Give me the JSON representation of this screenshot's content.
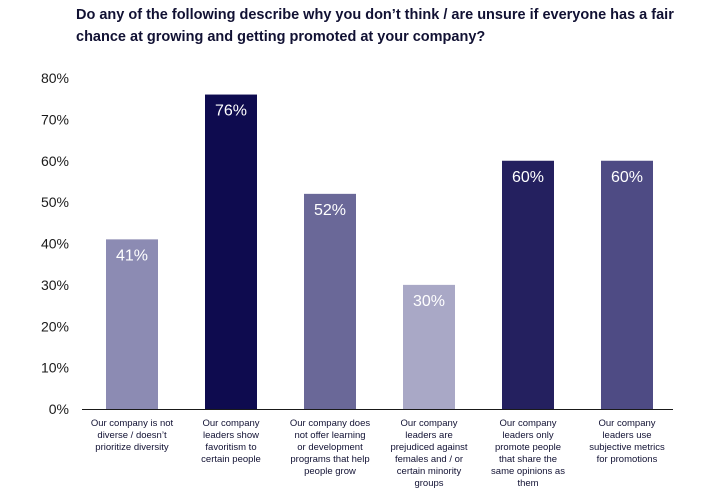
{
  "chart_data": {
    "type": "bar",
    "title_lines": [
      "Do any of the following describe why you don’t think / are unsure if everyone has a fair",
      "chance at growing and getting promoted at your company?"
    ],
    "categories": [
      "Our company is not diverse / doesn’t prioritize diversity",
      "Our company leaders show favoritism to certain people",
      "Our company does not offer learning or development programs that help people grow",
      "Our company leaders are prejudiced against females and / or certain minority groups",
      "Our company leaders only promote people that share the same opinions as them",
      "Our company leaders use subjective metrics for promotions"
    ],
    "category_lines": [
      [
        "Our company is not",
        "diverse / doesn’t",
        "prioritize diversity"
      ],
      [
        "Our company",
        "leaders show",
        "favoritism to",
        "certain people"
      ],
      [
        "Our company does",
        "not offer learning",
        "or development",
        "programs that help",
        "people grow"
      ],
      [
        "Our company",
        "leaders are",
        "prejudiced against",
        "females and / or",
        "certain minority",
        "groups"
      ],
      [
        "Our company",
        "leaders only",
        "promote people",
        "that share the",
        "same opinions as",
        "them"
      ],
      [
        "Our company",
        "leaders use",
        "subjective metrics",
        "for promotions"
      ]
    ],
    "values": [
      41,
      76,
      52,
      30,
      60,
      60
    ],
    "data_labels": [
      "41%",
      "76%",
      "52%",
      "30%",
      "60%",
      "60%"
    ],
    "bar_colors": [
      "#8c8bb3",
      "#0e0b4f",
      "#6a6898",
      "#a9a8c6",
      "#24205f",
      "#4e4b84"
    ],
    "y_ticks": [
      0,
      10,
      20,
      30,
      40,
      50,
      60,
      70,
      80
    ],
    "y_tick_labels": [
      "0%",
      "10%",
      "20%",
      "30%",
      "40%",
      "50%",
      "60%",
      "70%",
      "80%"
    ],
    "ylim": [
      0,
      80
    ],
    "xlabel": "",
    "ylabel": "",
    "grid": false
  }
}
